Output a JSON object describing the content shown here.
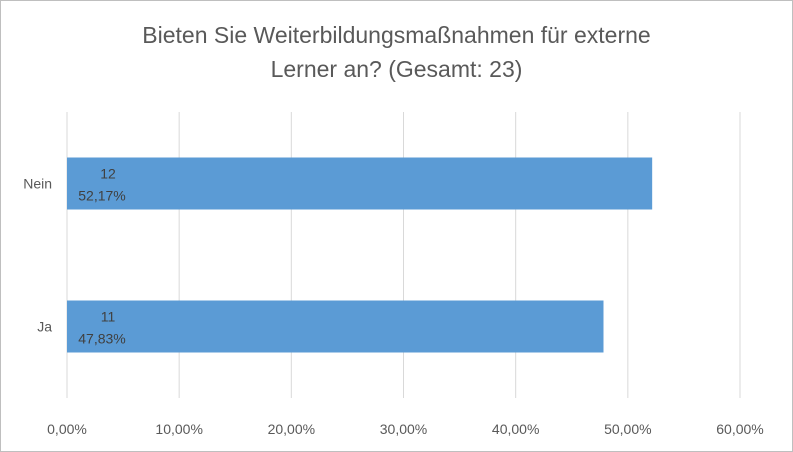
{
  "chart_data": {
    "type": "bar",
    "orientation": "horizontal",
    "title_lines": [
      "Bieten Sie Weiterbildungsmaßnahmen für externe",
      "Lerner an? (Gesamt: 23)"
    ],
    "categories": [
      "Nein",
      "Ja"
    ],
    "values": [
      52.17,
      47.83
    ],
    "counts": [
      12,
      11
    ],
    "value_labels": [
      "52,17%",
      "47,83%"
    ],
    "count_labels": [
      "12",
      "11"
    ],
    "x_ticks": [
      "0,00%",
      "10,00%",
      "20,00%",
      "30,00%",
      "40,00%",
      "50,00%",
      "60,00%"
    ],
    "xlim": [
      0,
      60
    ],
    "xlabel": "",
    "ylabel": "",
    "grid": true,
    "legend": "none",
    "bar_color": "#5b9bd5",
    "grid_color": "#d9d9d9",
    "text_color": "#595959"
  }
}
